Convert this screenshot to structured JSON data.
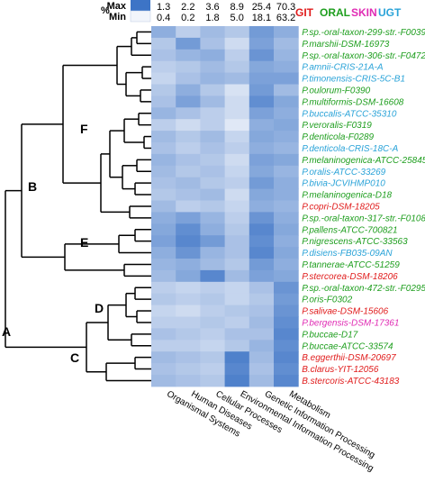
{
  "colors": {
    "GIT": "#e01b1b",
    "ORAL": "#1e9e1e",
    "SKIN": "#e02bb4",
    "UGT": "#2aa3d8",
    "heat_low": "#f2f5fb",
    "heat_high": "#3d74c6",
    "tree": "#000000"
  },
  "legend": [
    {
      "label": "GIT",
      "key": "GIT"
    },
    {
      "label": "ORAL",
      "key": "ORAL"
    },
    {
      "label": "SKIN",
      "key": "SKIN"
    },
    {
      "label": "UGT",
      "key": "UGT"
    }
  ],
  "colorbar": {
    "pct_label": "%",
    "max_label": "Max",
    "min_label": "Min",
    "max_values": [
      "1.3",
      "2.2",
      "3.6",
      "8.9",
      "25.4",
      "70.3"
    ],
    "min_values": [
      "0.4",
      "0.2",
      "1.8",
      "5.0",
      "18.1",
      "63.2"
    ]
  },
  "columns": [
    "Organismal Systems",
    "Human Diseases",
    "Cellular Processes",
    "Environmental Information Processing",
    "Genetic Information Processing",
    "Metabolism"
  ],
  "clades": [
    "A",
    "B",
    "C",
    "D",
    "E",
    "F"
  ],
  "rows": [
    {
      "label": "P.sp.-oral-taxon-299-str.-F0039",
      "site": "ORAL"
    },
    {
      "label": "P.marshii-DSM-16973",
      "site": "ORAL"
    },
    {
      "label": "P.sp.-oral-taxon-306-str.-F0472",
      "site": "ORAL"
    },
    {
      "label": "P.amnii-CRIS-21A-A",
      "site": "UGT"
    },
    {
      "label": "P.timonensis-CRIS-5C-B1",
      "site": "UGT"
    },
    {
      "label": "P.oulorum-F0390",
      "site": "ORAL"
    },
    {
      "label": "P.multiformis-DSM-16608",
      "site": "ORAL"
    },
    {
      "label": "P.buccalis-ATCC-35310",
      "site": "UGT"
    },
    {
      "label": "P.veroralis-F0319",
      "site": "ORAL"
    },
    {
      "label": "P.denticola-F0289",
      "site": "ORAL"
    },
    {
      "label": "P.denticola-CRIS-18C-A",
      "site": "UGT"
    },
    {
      "label": "P.melaninogenica-ATCC-25845",
      "site": "ORAL"
    },
    {
      "label": "P.oralis-ATCC-33269",
      "site": "UGT"
    },
    {
      "label": "P.bivia-JCVIHMP010",
      "site": "UGT"
    },
    {
      "label": "P.melaninogenica-D18",
      "site": "ORAL"
    },
    {
      "label": "P.copri-DSM-18205",
      "site": "GIT"
    },
    {
      "label": "P.sp.-oral-taxon-317-str.-F0108",
      "site": "ORAL"
    },
    {
      "label": "P.pallens-ATCC-700821",
      "site": "ORAL"
    },
    {
      "label": "P.nigrescens-ATCC-33563",
      "site": "ORAL"
    },
    {
      "label": "P.disiens-FB035-09AN",
      "site": "UGT"
    },
    {
      "label": "P.tannerae-ATCC-51259",
      "site": "ORAL"
    },
    {
      "label": "P.stercorea-DSM-18206",
      "site": "GIT"
    },
    {
      "label": "P.sp.-oral-taxon-472-str.-F0295",
      "site": "ORAL"
    },
    {
      "label": "P.oris-F0302",
      "site": "ORAL"
    },
    {
      "label": "P.salivae-DSM-15606",
      "site": "GIT"
    },
    {
      "label": "P.bergensis-DSM-17361",
      "site": "SKIN"
    },
    {
      "label": "P.buccae-D17",
      "site": "ORAL"
    },
    {
      "label": "P.buccae-ATCC-33574",
      "site": "ORAL"
    },
    {
      "label": "B.eggerthii-DSM-20697",
      "site": "GIT"
    },
    {
      "label": "B.clarus-YIT-12056",
      "site": "GIT"
    },
    {
      "label": "B.stercoris-ATCC-43183",
      "site": "GIT"
    }
  ],
  "heatmap": [
    [
      0.55,
      0.3,
      0.45,
      0.35,
      0.7,
      0.55
    ],
    [
      0.35,
      0.7,
      0.4,
      0.2,
      0.65,
      0.45
    ],
    [
      0.4,
      0.5,
      0.55,
      0.3,
      0.75,
      0.5
    ],
    [
      0.3,
      0.35,
      0.45,
      0.35,
      0.6,
      0.55
    ],
    [
      0.25,
      0.4,
      0.5,
      0.45,
      0.65,
      0.65
    ],
    [
      0.35,
      0.55,
      0.35,
      0.15,
      0.7,
      0.45
    ],
    [
      0.4,
      0.65,
      0.45,
      0.2,
      0.8,
      0.6
    ],
    [
      0.5,
      0.4,
      0.3,
      0.2,
      0.65,
      0.55
    ],
    [
      0.3,
      0.2,
      0.3,
      0.1,
      0.55,
      0.6
    ],
    [
      0.45,
      0.35,
      0.45,
      0.25,
      0.6,
      0.55
    ],
    [
      0.4,
      0.3,
      0.4,
      0.3,
      0.55,
      0.5
    ],
    [
      0.5,
      0.4,
      0.35,
      0.2,
      0.65,
      0.6
    ],
    [
      0.45,
      0.35,
      0.4,
      0.25,
      0.6,
      0.5
    ],
    [
      0.4,
      0.45,
      0.35,
      0.3,
      0.7,
      0.55
    ],
    [
      0.35,
      0.4,
      0.45,
      0.2,
      0.6,
      0.55
    ],
    [
      0.45,
      0.3,
      0.35,
      0.25,
      0.55,
      0.5
    ],
    [
      0.55,
      0.65,
      0.5,
      0.3,
      0.75,
      0.55
    ],
    [
      0.6,
      0.8,
      0.55,
      0.35,
      0.85,
      0.6
    ],
    [
      0.65,
      0.85,
      0.7,
      0.4,
      0.8,
      0.55
    ],
    [
      0.55,
      0.75,
      0.5,
      0.4,
      0.85,
      0.6
    ],
    [
      0.5,
      0.55,
      0.45,
      0.35,
      0.7,
      0.55
    ],
    [
      0.45,
      0.6,
      0.85,
      0.45,
      0.65,
      0.6
    ],
    [
      0.3,
      0.25,
      0.3,
      0.25,
      0.4,
      0.75
    ],
    [
      0.35,
      0.3,
      0.35,
      0.25,
      0.35,
      0.7
    ],
    [
      0.25,
      0.2,
      0.3,
      0.35,
      0.4,
      0.75
    ],
    [
      0.3,
      0.3,
      0.35,
      0.3,
      0.45,
      0.8
    ],
    [
      0.4,
      0.35,
      0.3,
      0.4,
      0.4,
      0.85
    ],
    [
      0.3,
      0.3,
      0.25,
      0.35,
      0.5,
      0.8
    ],
    [
      0.45,
      0.4,
      0.35,
      0.9,
      0.45,
      0.85
    ],
    [
      0.4,
      0.35,
      0.3,
      0.85,
      0.4,
      0.8
    ],
    [
      0.45,
      0.4,
      0.35,
      0.9,
      0.45,
      0.85
    ]
  ]
}
